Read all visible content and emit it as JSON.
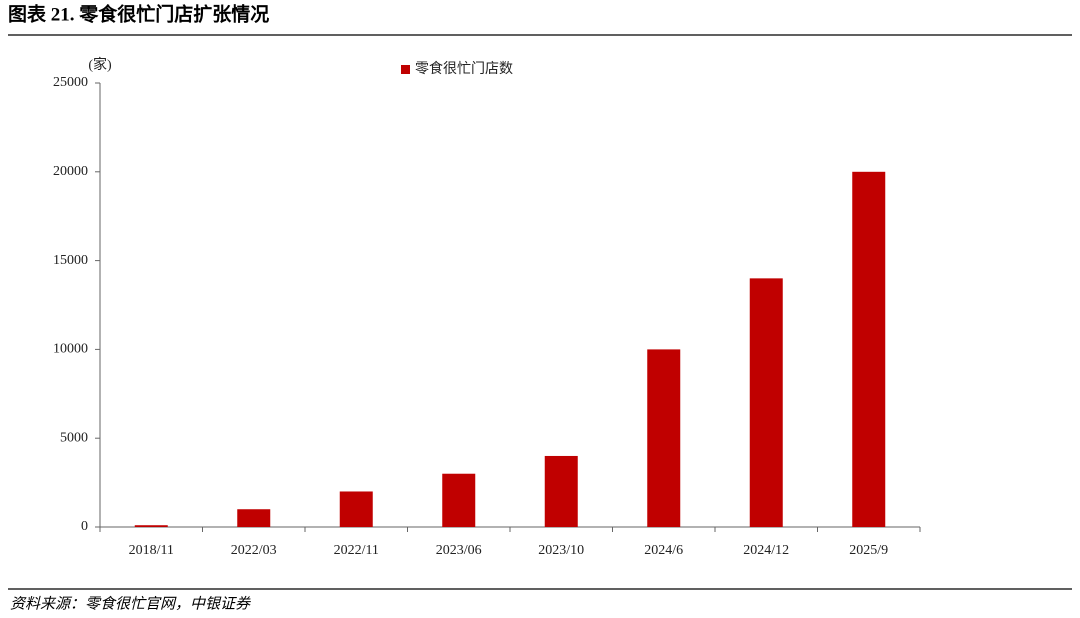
{
  "chart_data": {
    "type": "bar",
    "title": "图表 21. 零食很忙门店扩张情况",
    "y_label": "(家)",
    "source": "资料来源：零食很忙官网，中银证券",
    "categories": [
      "2018/11",
      "2022/03",
      "2022/11",
      "2023/06",
      "2023/10",
      "2024/6",
      "2024/12",
      "2025/9"
    ],
    "series": [
      {
        "name": "零食很忙门店数",
        "color": "#c00000",
        "values": [
          100,
          1000,
          2000,
          3000,
          4000,
          10000,
          14000,
          20000
        ]
      }
    ],
    "ylim": [
      0,
      25000
    ],
    "yticks": [
      0,
      5000,
      10000,
      15000,
      20000,
      25000
    ],
    "grid": false,
    "legend": "top"
  }
}
